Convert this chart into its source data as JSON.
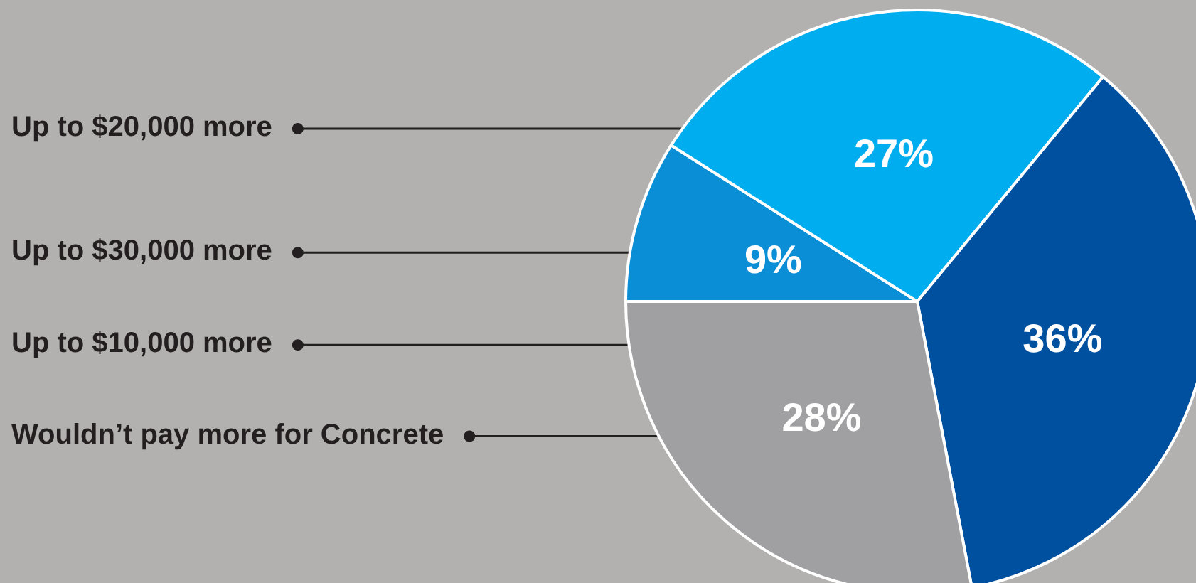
{
  "chart_data": {
    "type": "pie",
    "categories": [
      "Up to $30,000 more",
      "Up to $20,000 more",
      "Up to $10,000 more",
      "Wouldn’t pay more for Concrete"
    ],
    "values": [
      9,
      27,
      36,
      28
    ],
    "colors": [
      "#0a8fd6",
      "#00aeef",
      "#0050a0",
      "#a0a0a2"
    ],
    "value_labels": [
      "9%",
      "27%",
      "36%",
      "28%"
    ]
  }
}
